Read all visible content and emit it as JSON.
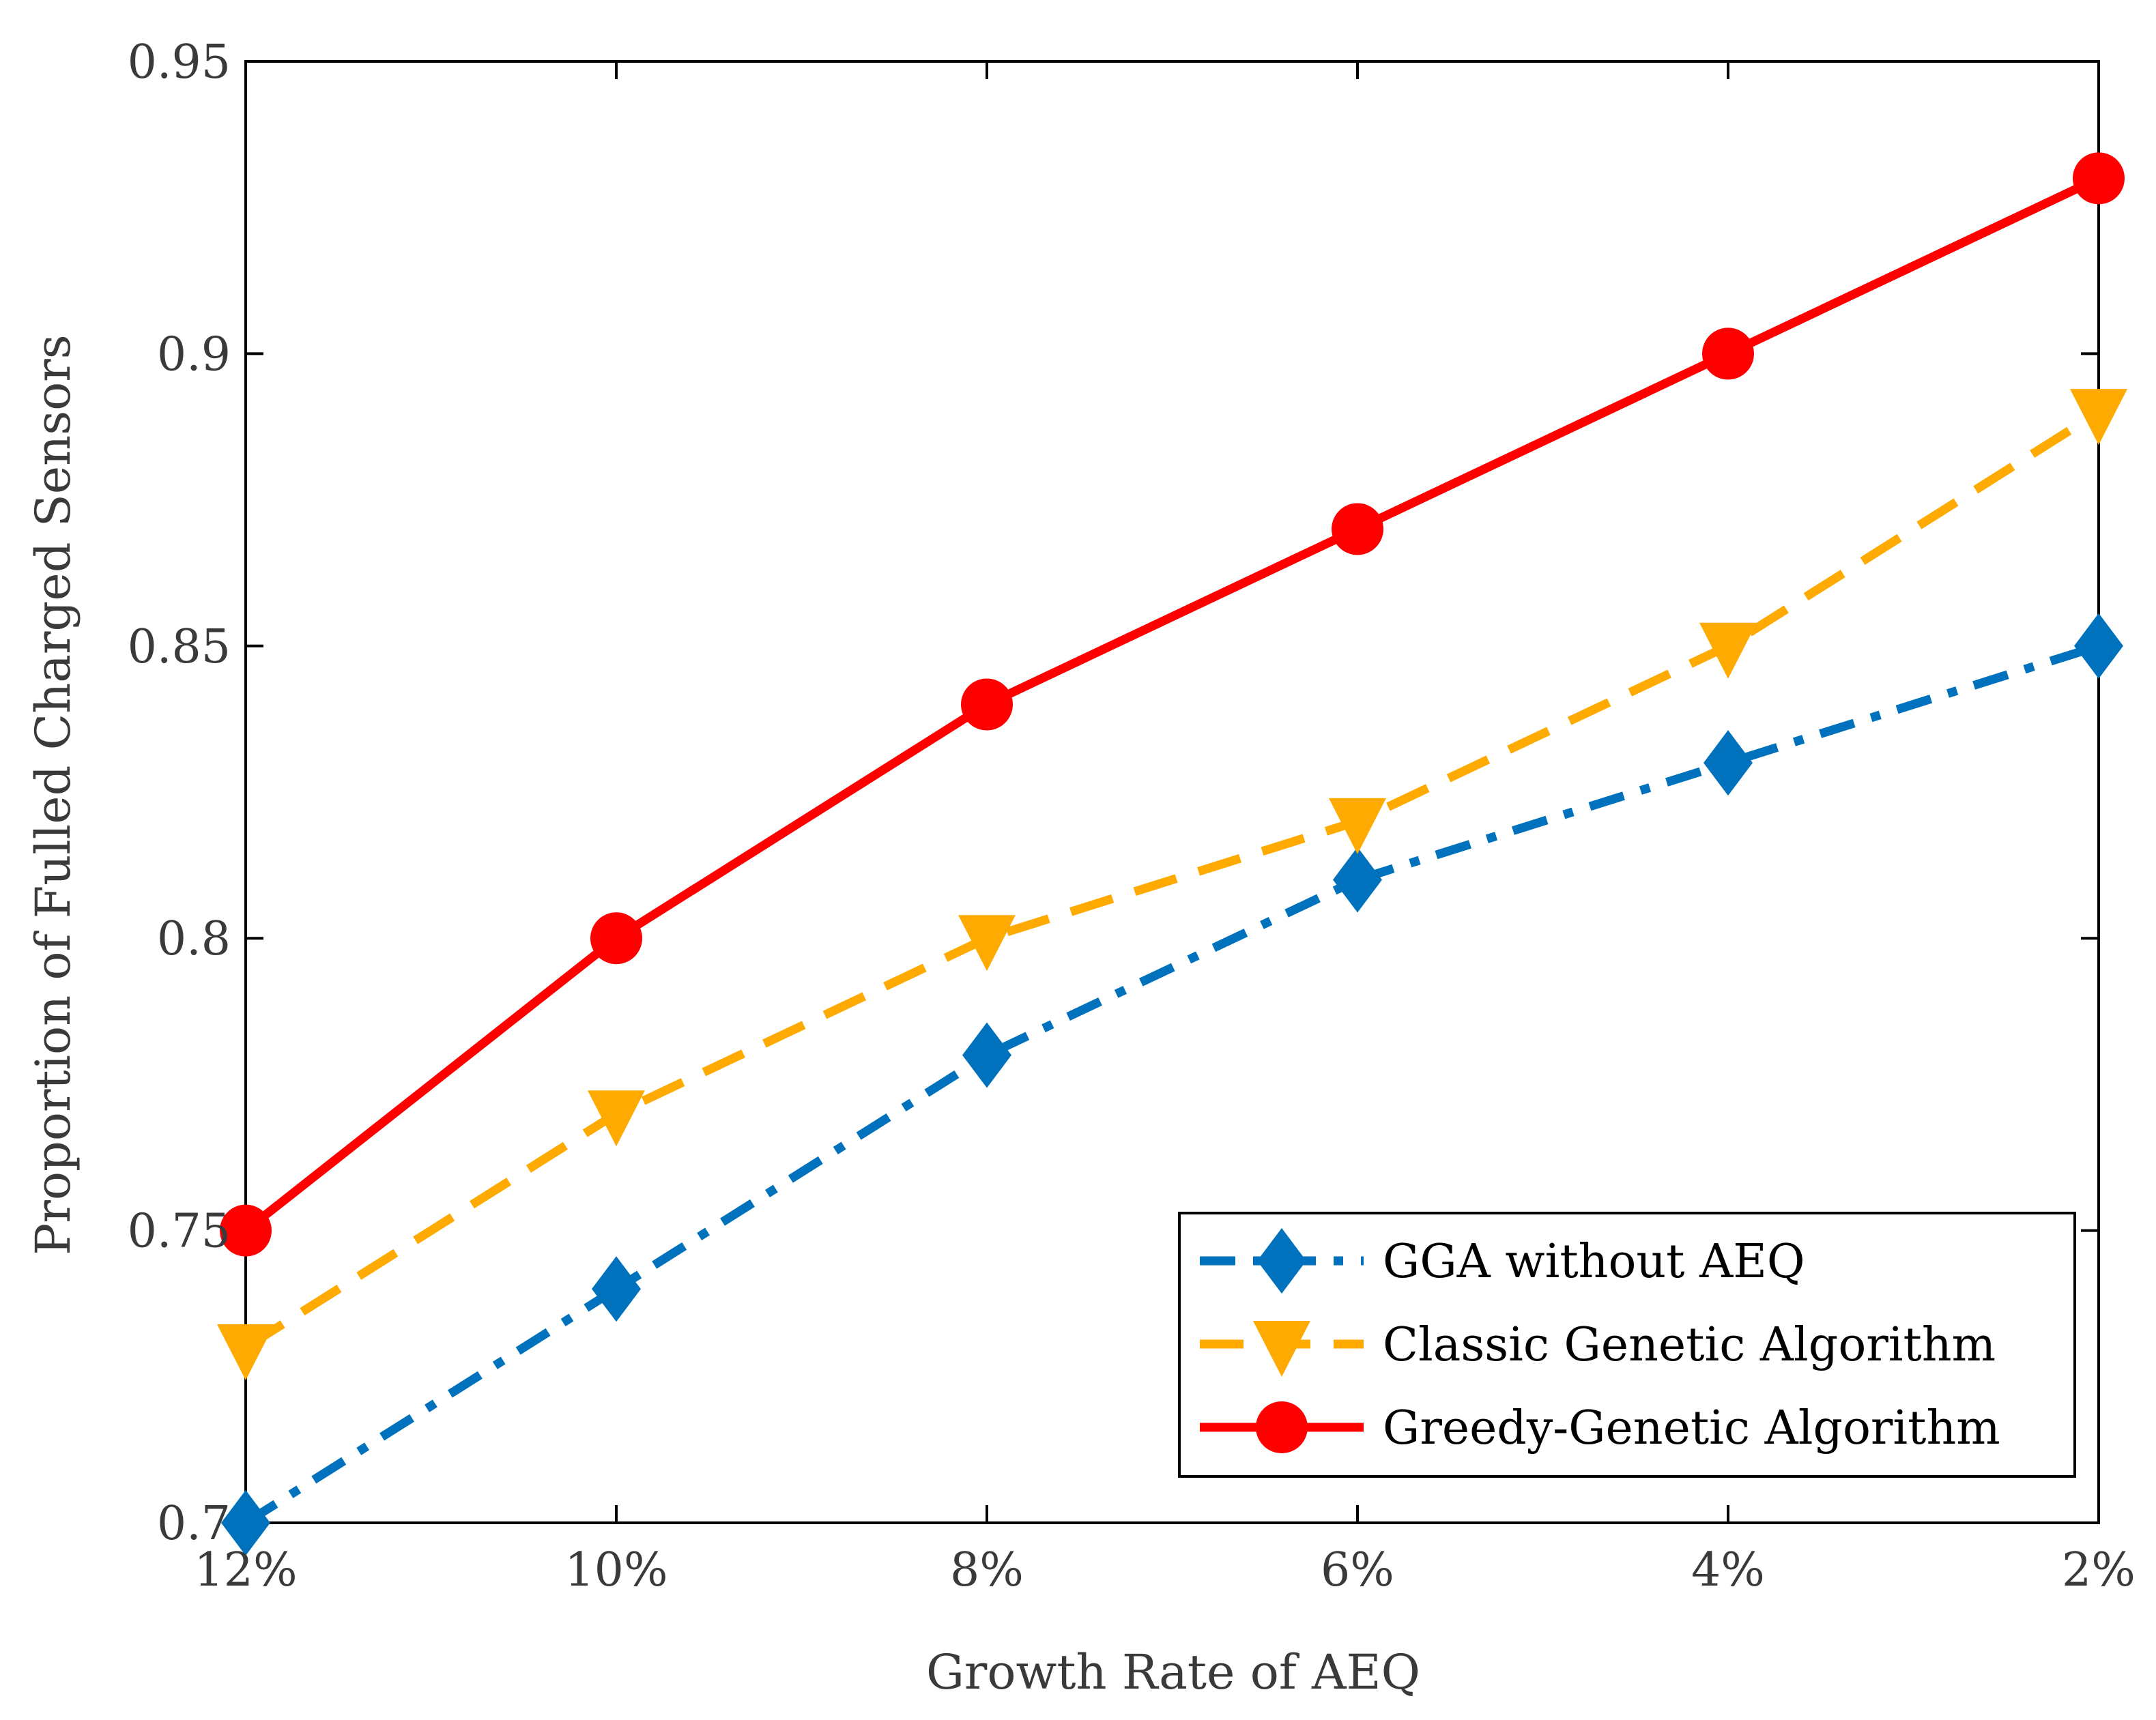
{
  "chart_data": {
    "type": "line",
    "xlabel": "Growth Rate of AEQ",
    "ylabel": "Proportion of Fulled Charged Sensors",
    "categories": [
      "12%",
      "10%",
      "8%",
      "6%",
      "4%",
      "2%"
    ],
    "ylim": [
      0.7,
      0.95
    ],
    "yticks": [
      0.7,
      0.75,
      0.8,
      0.85,
      0.9,
      0.95
    ],
    "ytick_labels": [
      "0.7",
      "0.75",
      "0.8",
      "0.85",
      "0.9",
      "0.95"
    ],
    "grid": false,
    "legend_position": "bottom-right",
    "series": [
      {
        "name": "GGA without AEQ",
        "values": [
          0.7,
          0.74,
          0.78,
          0.81,
          0.83,
          0.85
        ],
        "color": "#0072BD",
        "line_style": "dash-dot",
        "marker": "diamond"
      },
      {
        "name": "Classic Genetic Algorithm",
        "values": [
          0.73,
          0.77,
          0.8,
          0.82,
          0.85,
          0.89
        ],
        "color": "#FFAA00",
        "line_style": "dashed",
        "marker": "triangle-down"
      },
      {
        "name": "Greedy-Genetic Algorithm",
        "values": [
          0.75,
          0.8,
          0.84,
          0.87,
          0.9,
          0.93
        ],
        "color": "#FF0000",
        "line_style": "solid",
        "marker": "circle"
      }
    ]
  }
}
